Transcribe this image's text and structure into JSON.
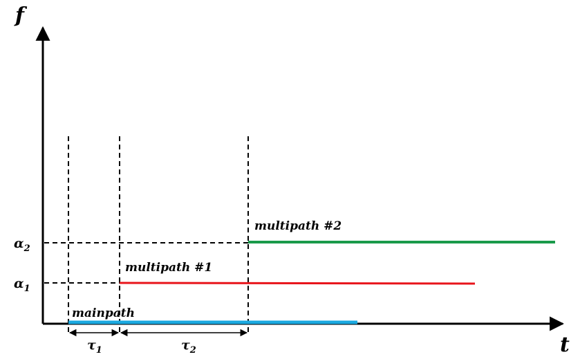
{
  "axes": {
    "y_label": "f",
    "x_label": "t"
  },
  "levels": [
    {
      "symbol": "α",
      "subscript": "2"
    },
    {
      "symbol": "α",
      "subscript": "1"
    }
  ],
  "delays": [
    {
      "symbol": "τ",
      "subscript": "1"
    },
    {
      "symbol": "τ",
      "subscript": "2"
    }
  ],
  "paths": {
    "multipath_2": "multipath #2",
    "multipath_1": "multipath #1",
    "mainpath": "mainpath"
  }
}
